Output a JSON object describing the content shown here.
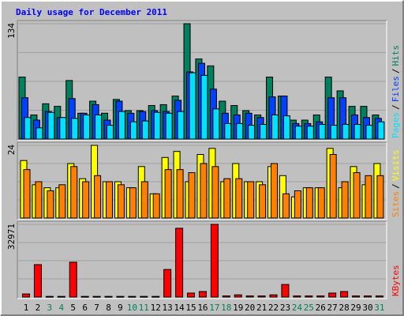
{
  "chart_data": [
    {
      "type": "bar",
      "title": "Daily usage for December 2011",
      "ylim": [
        0,
        134
      ],
      "yticks": [
        134
      ],
      "legend_separator": "/",
      "series": [
        {
          "name": "Hits",
          "color": "#00805c",
          "values": [
            72,
            28,
            41,
            38,
            68,
            30,
            44,
            30,
            46,
            33,
            33,
            39,
            40,
            50,
            134,
            93,
            85,
            44,
            39,
            33,
            28,
            72,
            50,
            22,
            22,
            28,
            72,
            56,
            38,
            38,
            28
          ]
        },
        {
          "name": "Files",
          "color": "#0040ff",
          "values": [
            48,
            22,
            32,
            25,
            47,
            30,
            40,
            22,
            44,
            30,
            32,
            33,
            32,
            45,
            78,
            88,
            58,
            30,
            28,
            30,
            25,
            49,
            50,
            18,
            18,
            20,
            48,
            48,
            28,
            25,
            24
          ]
        },
        {
          "name": "Pages",
          "color": "#00e0ff",
          "values": [
            25,
            13,
            31,
            25,
            24,
            28,
            28,
            16,
            32,
            20,
            21,
            31,
            30,
            32,
            77,
            74,
            35,
            18,
            18,
            16,
            17,
            28,
            27,
            15,
            15,
            17,
            16,
            17,
            17,
            16,
            20
          ]
        }
      ]
    },
    {
      "type": "bar",
      "ylim": [
        0,
        24
      ],
      "yticks": [
        24
      ],
      "series": [
        {
          "name": "Visits",
          "color": "#ffff00",
          "values": [
            19,
            11,
            10,
            10,
            18,
            13,
            24,
            12,
            12,
            10,
            17,
            8,
            20,
            22,
            12,
            21,
            23,
            12,
            18,
            12,
            12,
            17,
            14,
            7,
            10,
            10,
            23,
            10,
            17,
            11,
            18
          ]
        },
        {
          "name": "Sites",
          "color": "#ff8000",
          "values": [
            16,
            12,
            9,
            11,
            17,
            12,
            14,
            12,
            11,
            10,
            12,
            8,
            16,
            16,
            15,
            18,
            17,
            13,
            13,
            12,
            11,
            18,
            8,
            9,
            10,
            10,
            21,
            12,
            15,
            14,
            14
          ]
        }
      ]
    },
    {
      "type": "bar",
      "ylim": [
        0,
        32971
      ],
      "yticks": [
        32971
      ],
      "categories": [
        "1",
        "2",
        "3",
        "4",
        "5",
        "6",
        "7",
        "8",
        "9",
        "10",
        "11",
        "12",
        "13",
        "14",
        "15",
        "16",
        "17",
        "18",
        "19",
        "20",
        "21",
        "22",
        "23",
        "24",
        "25",
        "26",
        "27",
        "28",
        "29",
        "30",
        "31"
      ],
      "category_colors": [
        "#000000",
        "#000000",
        "#00805c",
        "#00805c",
        "#000000",
        "#000000",
        "#000000",
        "#000000",
        "#000000",
        "#00805c",
        "#00805c",
        "#000000",
        "#000000",
        "#000000",
        "#000000",
        "#000000",
        "#00805c",
        "#00805c",
        "#000000",
        "#000000",
        "#000000",
        "#000000",
        "#000000",
        "#00805c",
        "#00805c",
        "#000000",
        "#000000",
        "#000000",
        "#000000",
        "#000000",
        "#00805c"
      ],
      "series": [
        {
          "name": "KBytes",
          "color": "#ff0000",
          "values": [
            1400,
            14700,
            300,
            300,
            15800,
            300,
            300,
            300,
            300,
            300,
            300,
            300,
            12500,
            31200,
            1800,
            2500,
            32971,
            500,
            1000,
            500,
            500,
            1000,
            5700,
            500,
            500,
            500,
            1800,
            2500,
            500,
            500,
            500
          ]
        }
      ]
    }
  ]
}
